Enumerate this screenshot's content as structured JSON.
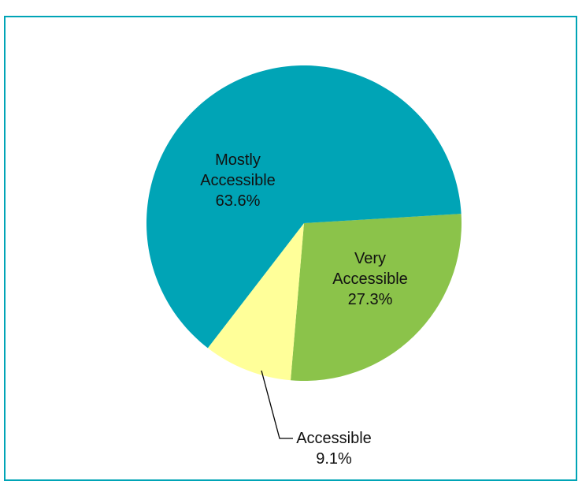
{
  "chart_data": {
    "type": "pie",
    "categories": [
      "Very Accessible",
      "Accessible",
      "Mostly Accessible"
    ],
    "values": [
      27.3,
      9.1,
      63.6
    ],
    "colors": [
      "#8BC34A",
      "#FFFF99",
      "#00A4B6"
    ],
    "label_lines": [
      [
        "Very",
        "Accessible",
        "27.3%"
      ],
      [
        "Accessible",
        "9.1%"
      ],
      [
        "Mostly",
        "Accessible",
        "63.6%"
      ]
    ],
    "start_angle": "3 o'clock",
    "direction": "clockwise",
    "legend": "none"
  },
  "frame": {
    "border_color": "#00A4B6"
  }
}
